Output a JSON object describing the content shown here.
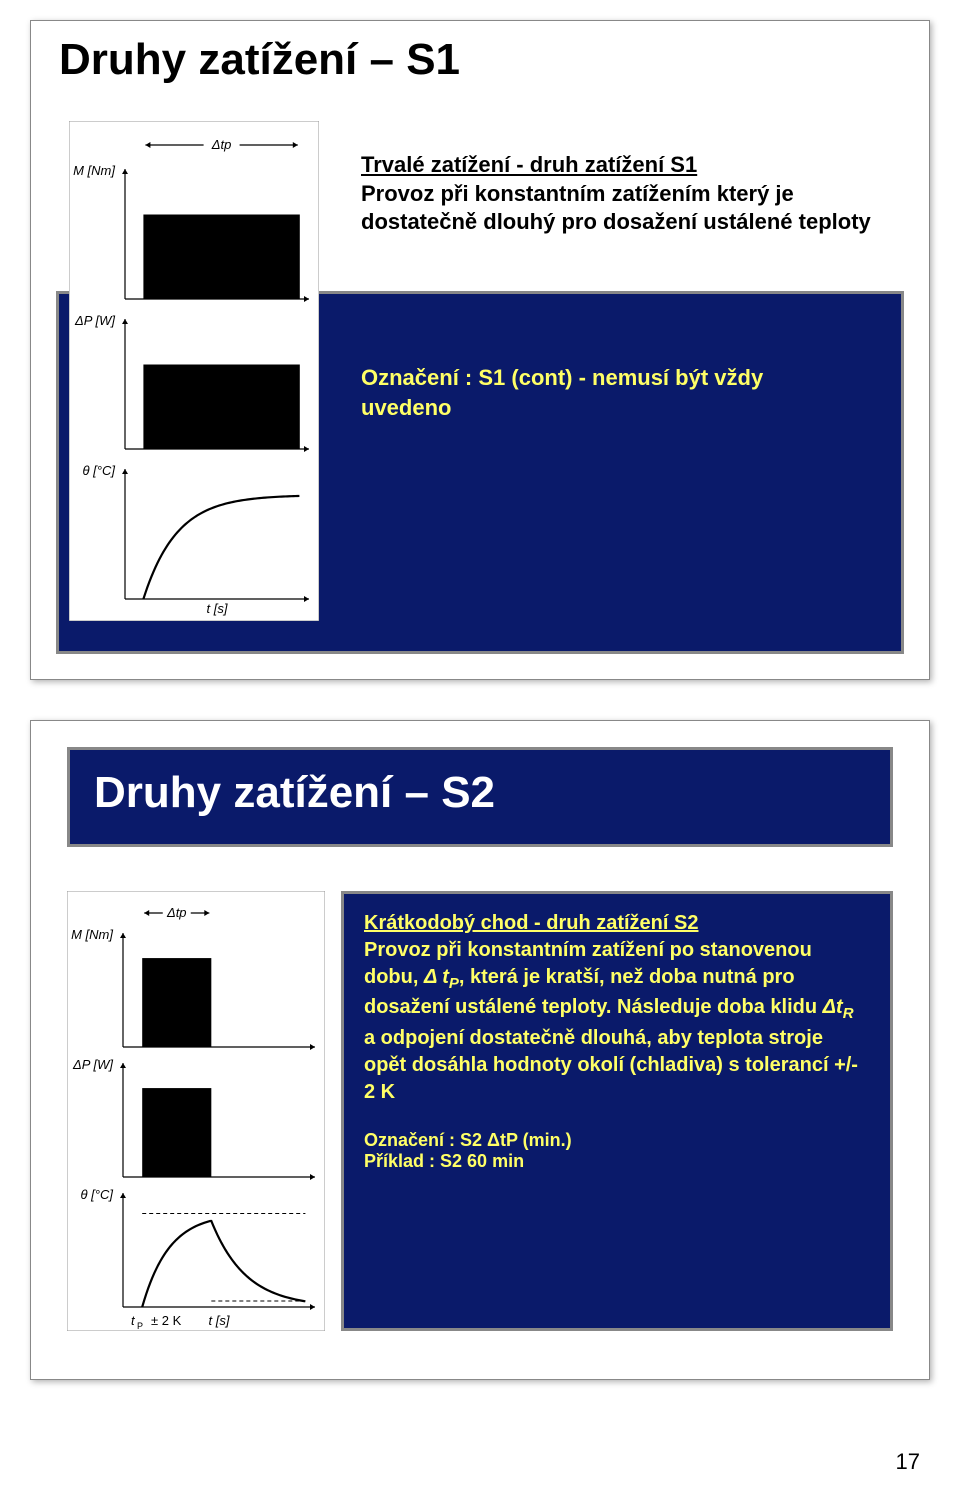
{
  "page_number": "17",
  "slide1": {
    "title": "Druhy zatížení – S1",
    "heading": "Trvalé zatížení - druh zatížení  S1",
    "desc": "Provoz při konstantním zatížením který je dostatečně dlouhý pro dosažení ustálené teploty",
    "label": "Označení : S1 (cont) - nemusí být vždy uvedeno",
    "figure": {
      "axes_y": [
        "M [Nm]",
        "ΔP [W]",
        "θ [°C]"
      ],
      "axis_x": "t [s]",
      "bar_color": "#000000",
      "curve_color": "#000000",
      "dtp_label": "Δtp",
      "subplots": [
        {
          "t_start": 0.1,
          "t_end": 0.95,
          "level": 0.65
        },
        {
          "t_start": 0.1,
          "t_end": 0.95,
          "level": 0.65
        },
        {
          "t_start": 0.1,
          "t_end": 0.95,
          "curve_max": 0.8,
          "tau": 0.18
        }
      ],
      "bg": "#ffffff"
    }
  },
  "slide2": {
    "title": "Druhy zatížení – S2",
    "heading": "Krátkodobý chod - druh zatížení  S2",
    "desc_parts": {
      "p1": "Provoz při konstantním zatížení po stanovenou dobu, ",
      "dtp": "Δ t",
      "dtp_sub": "P",
      "p2": ", která je kratší, než doba nutná pro dosažení ustálené teploty. Následuje doba klidu ",
      "dtr": "Δt",
      "dtr_sub": "R",
      "p3": " a odpojení dostatečně dlouhá, aby teplota stroje opět dosáhla hodnoty okolí (chladiva) s tolerancí +/- 2 K"
    },
    "label_line1_pre": "Označení :   S2   ",
    "label_line1_dt": "Δt",
    "label_line1_sub": "P",
    "label_line1_post": "  (min.)",
    "label_line2": "Příklad : S2   60 min",
    "figure": {
      "axes_y": [
        "M [Nm]",
        "ΔP [W]",
        "θ [°C]"
      ],
      "axis_x": "t [s]",
      "bar_color": "#000000",
      "curve_color": "#000000",
      "dtp_label": "Δtp",
      "tol_label": "± 2 K",
      "tol_prefix": "t",
      "tol_prefix_sub": "P",
      "dashed_color": "#000000",
      "subplots": [
        {
          "t_start": 0.1,
          "t_end": 0.46,
          "level": 0.78
        },
        {
          "t_start": 0.1,
          "t_end": 0.46,
          "level": 0.78
        },
        {
          "t_start": 0.1,
          "t_end": 0.46,
          "t_tail": 0.95,
          "peak": 0.82,
          "tau_up": 0.14,
          "tau_dn": 0.18
        }
      ],
      "bg": "#ffffff"
    }
  }
}
